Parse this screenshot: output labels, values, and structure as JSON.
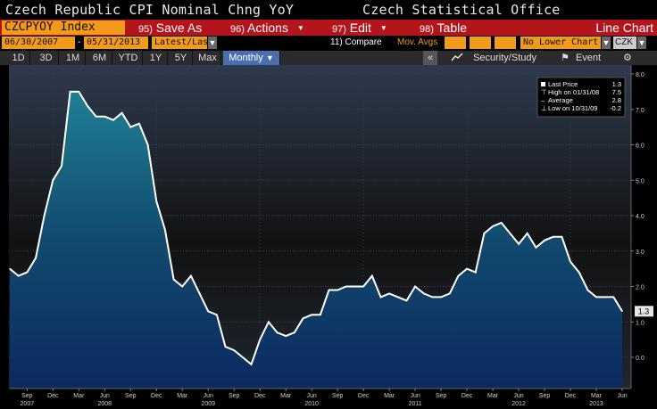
{
  "header": {
    "title": "Czech Republic CPI Nominal Chng YoY",
    "source": "Czech Statistical Office"
  },
  "menu": {
    "ticker": "CZCPYOY Index",
    "save_num": "95)",
    "save_label": "Save As",
    "actions_num": "96)",
    "actions_label": "Actions",
    "edit_num": "97)",
    "edit_label": "Edit",
    "table_num": "98)",
    "table_label": "Table",
    "view_label": "Line Chart"
  },
  "controls": {
    "start_date": "06/30/2007",
    "end_date": "05/31/2013",
    "date_sep": "-",
    "period_select": "Latest/Last",
    "compare_label": "11) Compare",
    "mov_avgs_label": "Mov. Avgs",
    "lower_chart_select": "No Lower Chart",
    "currency": "CZK"
  },
  "range": {
    "buttons": [
      "1D",
      "3D",
      "1M",
      "6M",
      "YTD",
      "1Y",
      "5Y",
      "Max"
    ],
    "frequency": "Monthly",
    "security_study": "Security/Study",
    "event": "Event"
  },
  "legend": {
    "last_price_label": "Last Price",
    "last_price_value": "1.3",
    "high_label": "High on 01/31/08",
    "high_value": "7.5",
    "average_label": "Average",
    "average_value": "2.8",
    "low_label": "Low on 10/31/09",
    "low_value": "-0.2"
  },
  "colors": {
    "menu_red": "#b4141c",
    "field_orange": "#f39a1b",
    "line": "#ffffff",
    "area_top": "#1f7f93",
    "area_bottom": "#0b2a60"
  },
  "chart_data": {
    "type": "area",
    "title": "Czech Republic CPI Nominal Chng YoY",
    "ylim": [
      -0.4,
      8.0
    ],
    "y_ticks": [
      -0.0,
      1.0,
      2.0,
      3.0,
      4.0,
      5.0,
      6.0,
      7.0,
      8.0
    ],
    "y_tick_labels": [
      "0.0",
      "1.0",
      "2.0",
      "3.0",
      "4.0",
      "5.0",
      "6.0",
      "7.0",
      "8.0"
    ],
    "last_value_label": "1.3",
    "month_labels": [
      {
        "label": "Sep",
        "i": 2
      },
      {
        "label": "Dec",
        "i": 5
      },
      {
        "label": "Mar",
        "i": 8
      },
      {
        "label": "Jun",
        "i": 11
      },
      {
        "label": "Sep",
        "i": 14
      },
      {
        "label": "Dec",
        "i": 17
      },
      {
        "label": "Mar",
        "i": 20
      },
      {
        "label": "Jun",
        "i": 23
      },
      {
        "label": "Sep",
        "i": 26
      },
      {
        "label": "Dec",
        "i": 29
      },
      {
        "label": "Mar",
        "i": 32
      },
      {
        "label": "Jun",
        "i": 35
      },
      {
        "label": "Sep",
        "i": 38
      },
      {
        "label": "Dec",
        "i": 41
      },
      {
        "label": "Mar",
        "i": 44
      },
      {
        "label": "Jun",
        "i": 47
      },
      {
        "label": "Sep",
        "i": 50
      },
      {
        "label": "Dec",
        "i": 53
      },
      {
        "label": "Mar",
        "i": 56
      },
      {
        "label": "Jun",
        "i": 59
      },
      {
        "label": "Sep",
        "i": 62
      },
      {
        "label": "Dec",
        "i": 65
      },
      {
        "label": "Mar",
        "i": 68
      },
      {
        "label": "Jun",
        "i": 71
      }
    ],
    "year_labels": [
      {
        "label": "2007",
        "i": 2
      },
      {
        "label": "2008",
        "i": 11
      },
      {
        "label": "2009",
        "i": 23
      },
      {
        "label": "2010",
        "i": 35
      },
      {
        "label": "2011",
        "i": 47
      },
      {
        "label": "2012",
        "i": 59
      },
      {
        "label": "2013",
        "i": 68
      }
    ],
    "series": [
      {
        "values": [
          2.5,
          2.3,
          2.4,
          2.8,
          4.0,
          5.0,
          5.4,
          7.5,
          7.5,
          7.1,
          6.8,
          6.8,
          6.7,
          6.9,
          6.5,
          6.6,
          6.0,
          4.4,
          3.6,
          2.2,
          2.0,
          2.3,
          1.8,
          1.3,
          1.2,
          0.3,
          0.2,
          0.0,
          -0.2,
          0.5,
          1.0,
          0.7,
          0.6,
          0.7,
          1.1,
          1.2,
          1.2,
          1.9,
          1.9,
          2.0,
          2.0,
          2.0,
          2.3,
          1.7,
          1.8,
          1.7,
          1.6,
          2.0,
          1.8,
          1.7,
          1.7,
          1.8,
          2.3,
          2.5,
          2.4,
          3.5,
          3.7,
          3.8,
          3.5,
          3.2,
          3.5,
          3.1,
          3.3,
          3.4,
          3.4,
          2.7,
          2.4,
          1.9,
          1.7,
          1.7,
          1.7,
          1.3
        ]
      }
    ]
  }
}
